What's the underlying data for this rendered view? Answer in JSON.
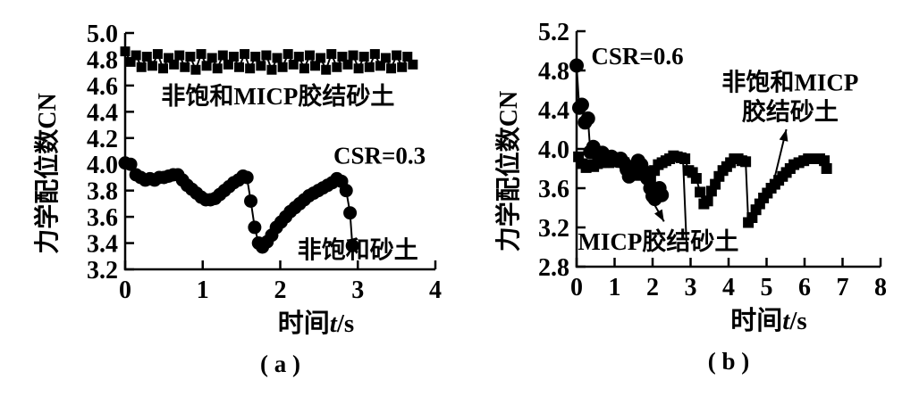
{
  "figure": {
    "background": "#ffffff",
    "ink": "#000000"
  },
  "chart_data": [
    {
      "type": "line",
      "panel_label": "( a )",
      "xlabel": {
        "pre": "时间",
        "italic": "t",
        "post": "/s"
      },
      "ylabel": "力学配位数CN",
      "xlim": [
        0,
        4
      ],
      "ylim": [
        3.2,
        5.0
      ],
      "xticks": [
        0,
        1,
        2,
        3,
        4
      ],
      "xtick_labels": [
        "0",
        "1",
        "2",
        "3",
        "4"
      ],
      "yticks": [
        3.2,
        3.4,
        3.6,
        3.8,
        4.0,
        4.2,
        4.4,
        4.6,
        4.8,
        5.0
      ],
      "ytick_labels": [
        "3.2",
        "3.4",
        "3.6",
        "3.8",
        "4.0",
        "4.2",
        "4.4",
        "4.6",
        "4.8",
        "5.0"
      ],
      "grid": false,
      "legend": "in-plot text annotations with leader lines",
      "series": [
        {
          "key": "unsaturated-micp-cemented-sand",
          "label": "非饱和MICP胶结砂土",
          "marker": "square",
          "marker_half": 5.5,
          "x_start": 0,
          "x_step": 0.07,
          "values": [
            4.86,
            4.78,
            4.83,
            4.74,
            4.82,
            4.75,
            4.84,
            4.73,
            4.81,
            4.76,
            4.83,
            4.74,
            4.82,
            4.72,
            4.84,
            4.75,
            4.81,
            4.73,
            4.83,
            4.76,
            4.82,
            4.74,
            4.84,
            4.73,
            4.82,
            4.75,
            4.83,
            4.72,
            4.81,
            4.74,
            4.84,
            4.76,
            4.82,
            4.73,
            4.83,
            4.75,
            4.81,
            4.72,
            4.84,
            4.74,
            4.82,
            4.76,
            4.83,
            4.73,
            4.82,
            4.74,
            4.84,
            4.75,
            4.81,
            4.73,
            4.83,
            4.74,
            4.82,
            4.76
          ]
        },
        {
          "key": "unsaturated-sand",
          "label": "非饱和砂土",
          "marker": "circle",
          "marker_half": 7.5,
          "points": [
            [
              0,
              4.01
            ],
            [
              0.07,
              4.0
            ],
            [
              0.14,
              3.92
            ],
            [
              0.2,
              3.9
            ],
            [
              0.26,
              3.88
            ],
            [
              0.32,
              3.89
            ],
            [
              0.38,
              3.88
            ],
            [
              0.44,
              3.9
            ],
            [
              0.5,
              3.9
            ],
            [
              0.56,
              3.91
            ],
            [
              0.62,
              3.92
            ],
            [
              0.68,
              3.92
            ],
            [
              0.74,
              3.88
            ],
            [
              0.8,
              3.84
            ],
            [
              0.86,
              3.81
            ],
            [
              0.92,
              3.78
            ],
            [
              0.98,
              3.75
            ],
            [
              1.04,
              3.73
            ],
            [
              1.1,
              3.73
            ],
            [
              1.16,
              3.74
            ],
            [
              1.22,
              3.77
            ],
            [
              1.28,
              3.8
            ],
            [
              1.34,
              3.83
            ],
            [
              1.4,
              3.86
            ],
            [
              1.46,
              3.88
            ],
            [
              1.52,
              3.91
            ],
            [
              1.57,
              3.9
            ],
            [
              1.62,
              3.72
            ],
            [
              1.67,
              3.52
            ],
            [
              1.72,
              3.4
            ],
            [
              1.77,
              3.37
            ],
            [
              1.83,
              3.41
            ],
            [
              1.89,
              3.46
            ],
            [
              1.95,
              3.52
            ],
            [
              2.01,
              3.56
            ],
            [
              2.07,
              3.6
            ],
            [
              2.13,
              3.64
            ],
            [
              2.19,
              3.67
            ],
            [
              2.25,
              3.7
            ],
            [
              2.31,
              3.73
            ],
            [
              2.37,
              3.76
            ],
            [
              2.43,
              3.78
            ],
            [
              2.49,
              3.8
            ],
            [
              2.55,
              3.82
            ],
            [
              2.61,
              3.84
            ],
            [
              2.67,
              3.86
            ],
            [
              2.73,
              3.89
            ],
            [
              2.79,
              3.87
            ],
            [
              2.85,
              3.8
            ],
            [
              2.9,
              3.63
            ],
            [
              2.93,
              3.38
            ]
          ]
        }
      ],
      "annotations": [
        {
          "text": "非饱和MICP胶结砂土",
          "x": 1.97,
          "y": 4.52,
          "size": 27
        },
        {
          "text": "CSR=0.3",
          "x": 3.28,
          "y": 4.07,
          "size": 27
        },
        {
          "text": "非饱和砂土",
          "x": 3.0,
          "y": 3.35,
          "size": 27
        }
      ],
      "arrows": []
    },
    {
      "type": "line",
      "panel_label": "( b )",
      "xlabel": {
        "pre": "时间",
        "italic": "t",
        "post": "/s"
      },
      "ylabel": "力学配位数CN",
      "xlim": [
        0,
        8
      ],
      "ylim": [
        2.8,
        5.2
      ],
      "xticks": [
        0,
        1,
        2,
        3,
        4,
        5,
        6,
        7,
        8
      ],
      "xtick_labels": [
        "0",
        "1",
        "2",
        "3",
        "4",
        "5",
        "6",
        "7",
        "8"
      ],
      "yticks": [
        2.8,
        3.2,
        3.6,
        4.0,
        4.4,
        4.8,
        5.2
      ],
      "ytick_labels": [
        "2.8",
        "3.2",
        "3.6",
        "4.0",
        "4.4",
        "4.8",
        "5.2"
      ],
      "grid": false,
      "legend": "in-plot text annotations with leader lines",
      "series": [
        {
          "key": "micp-cemented-sand",
          "label": "MICP胶结砂土",
          "marker": "circle",
          "marker_half": 8,
          "points": [
            [
              0,
              4.85
            ],
            [
              0.07,
              4.42
            ],
            [
              0.14,
              4.45
            ],
            [
              0.22,
              4.27
            ],
            [
              0.3,
              4.31
            ],
            [
              0.36,
              3.97
            ],
            [
              0.44,
              4.02
            ],
            [
              0.52,
              3.97
            ],
            [
              0.6,
              3.92
            ],
            [
              0.68,
              3.96
            ],
            [
              0.76,
              3.9
            ],
            [
              0.84,
              3.88
            ],
            [
              0.92,
              3.92
            ],
            [
              1.0,
              3.9
            ],
            [
              1.08,
              3.88
            ],
            [
              1.16,
              3.9
            ],
            [
              1.24,
              3.86
            ],
            [
              1.32,
              3.79
            ],
            [
              1.38,
              3.72
            ],
            [
              1.46,
              3.77
            ],
            [
              1.54,
              3.83
            ],
            [
              1.62,
              3.88
            ],
            [
              1.7,
              3.84
            ],
            [
              1.78,
              3.77
            ],
            [
              1.86,
              3.7
            ],
            [
              1.94,
              3.6
            ],
            [
              2.0,
              3.52
            ],
            [
              2.06,
              3.49
            ],
            [
              2.12,
              3.56
            ],
            [
              2.18,
              3.6
            ],
            [
              2.24,
              3.53
            ]
          ]
        },
        {
          "key": "unsaturated-micp-cemented-sand",
          "label": "非饱和MICP胶结砂土",
          "marker": "square",
          "marker_half": 6,
          "points": [
            [
              0.05,
              3.92
            ],
            [
              0.15,
              3.85
            ],
            [
              0.25,
              3.81
            ],
            [
              0.35,
              3.84
            ],
            [
              0.45,
              3.82
            ],
            [
              0.55,
              3.85
            ],
            [
              0.65,
              3.86
            ],
            [
              0.75,
              3.88
            ],
            [
              0.85,
              3.86
            ],
            [
              0.95,
              3.9
            ],
            [
              1.05,
              3.88
            ],
            [
              1.15,
              3.9
            ],
            [
              1.25,
              3.86
            ],
            [
              1.35,
              3.83
            ],
            [
              1.45,
              3.8
            ],
            [
              1.55,
              3.76
            ],
            [
              1.65,
              3.73
            ],
            [
              1.75,
              3.78
            ],
            [
              1.85,
              3.74
            ],
            [
              1.95,
              3.68
            ],
            [
              2.05,
              3.78
            ],
            [
              2.15,
              3.84
            ],
            [
              2.25,
              3.86
            ],
            [
              2.35,
              3.88
            ],
            [
              2.45,
              3.9
            ],
            [
              2.55,
              3.93
            ],
            [
              2.65,
              3.92
            ],
            [
              2.75,
              3.91
            ],
            [
              2.85,
              3.9
            ],
            [
              2.95,
              3.78
            ],
            [
              3.05,
              3.76
            ],
            [
              3.15,
              3.7
            ],
            [
              3.25,
              3.56
            ],
            [
              3.35,
              3.44
            ],
            [
              3.45,
              3.47
            ],
            [
              3.55,
              3.57
            ],
            [
              3.65,
              3.64
            ],
            [
              3.75,
              3.72
            ],
            [
              3.85,
              3.78
            ],
            [
              3.95,
              3.82
            ],
            [
              4.05,
              3.86
            ],
            [
              4.15,
              3.9
            ],
            [
              4.25,
              3.9
            ],
            [
              4.35,
              3.88
            ],
            [
              4.45,
              3.87
            ],
            [
              4.52,
              3.25
            ],
            [
              4.62,
              3.3
            ],
            [
              4.72,
              3.38
            ],
            [
              4.82,
              3.44
            ],
            [
              4.92,
              3.5
            ],
            [
              5.02,
              3.55
            ],
            [
              5.12,
              3.6
            ],
            [
              5.22,
              3.64
            ],
            [
              5.32,
              3.68
            ],
            [
              5.42,
              3.72
            ],
            [
              5.52,
              3.76
            ],
            [
              5.62,
              3.8
            ],
            [
              5.72,
              3.84
            ],
            [
              5.85,
              3.86
            ],
            [
              5.98,
              3.88
            ],
            [
              6.1,
              3.9
            ],
            [
              6.25,
              3.9
            ],
            [
              6.4,
              3.9
            ],
            [
              6.52,
              3.88
            ],
            [
              6.58,
              3.8
            ]
          ]
        }
      ],
      "annotations": [
        {
          "text": "CSR=0.6",
          "x": 1.6,
          "y": 4.95,
          "size": 27
        },
        {
          "text": "非饱和MICP",
          "x": 5.62,
          "y": 4.68,
          "size": 27
        },
        {
          "text": "胶结砂土",
          "x": 5.62,
          "y": 4.38,
          "size": 27
        },
        {
          "text": "MICP胶结砂土",
          "x": 2.15,
          "y": 3.06,
          "size": 27
        }
      ],
      "arrows": [
        {
          "x1": 1.98,
          "y1": 3.48,
          "x2": 2.3,
          "y2": 3.26,
          "head": true
        },
        {
          "x1": 2.8,
          "y1": 3.9,
          "x2": 2.9,
          "y2": 2.97,
          "head": false
        },
        {
          "x1": 5.22,
          "y1": 3.72,
          "x2": 5.52,
          "y2": 4.2,
          "head": true
        }
      ]
    }
  ]
}
